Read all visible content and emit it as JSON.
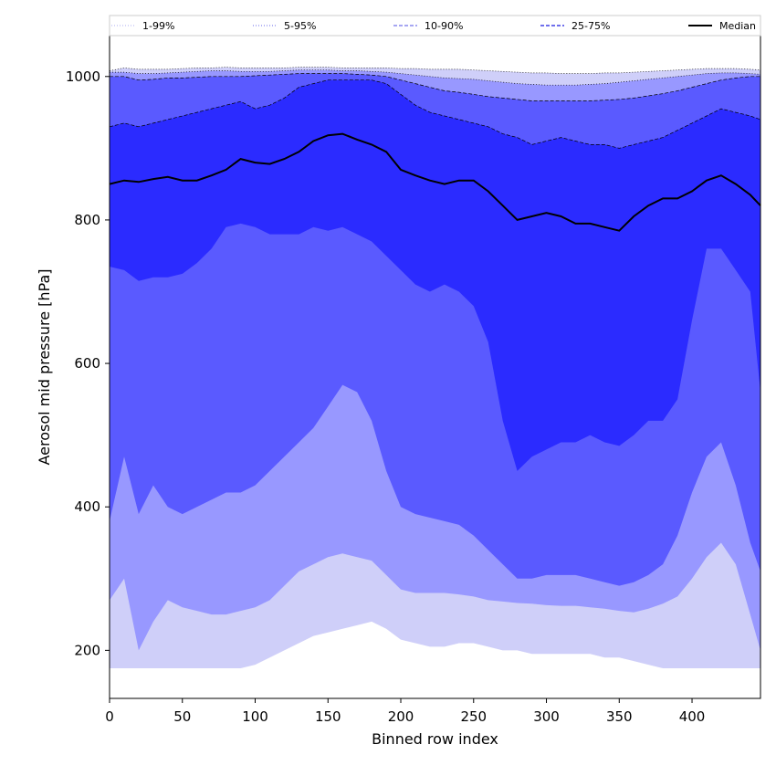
{
  "chart_data": {
    "type": "area",
    "title": "",
    "xlabel": "Binned row index",
    "ylabel": "Aerosol mid pressure [hPa]",
    "xlim": [
      0,
      447
    ],
    "ylim": [
      133,
      1057
    ],
    "x_ticks": [
      0,
      50,
      100,
      150,
      200,
      250,
      300,
      350,
      400
    ],
    "y_ticks": [
      200,
      400,
      600,
      800,
      1000
    ],
    "grid": false,
    "legend_position": "top",
    "legend": [
      {
        "label": "1-99%",
        "style": "dotted",
        "color": "#c8c8f5"
      },
      {
        "label": "5-95%",
        "style": "dotted",
        "color": "#9a9af0"
      },
      {
        "label": "10-90%",
        "style": "dashed",
        "color": "#8a8aee"
      },
      {
        "label": "25-75%",
        "style": "dashed",
        "color": "#4040e6"
      },
      {
        "label": "Median",
        "style": "solid",
        "color": "#000000"
      }
    ],
    "x": [
      0,
      10,
      20,
      30,
      40,
      50,
      60,
      70,
      80,
      90,
      100,
      110,
      120,
      130,
      140,
      150,
      160,
      170,
      180,
      190,
      200,
      210,
      220,
      230,
      240,
      250,
      260,
      270,
      280,
      290,
      300,
      310,
      320,
      330,
      340,
      350,
      360,
      370,
      380,
      390,
      400,
      410,
      420,
      430,
      440,
      447
    ],
    "series": [
      {
        "name": "1-99%",
        "color": "#cfcff9",
        "lower": [
          175,
          175,
          175,
          175,
          175,
          175,
          175,
          175,
          175,
          175,
          180,
          190,
          200,
          210,
          220,
          225,
          230,
          235,
          240,
          230,
          215,
          210,
          205,
          205,
          210,
          210,
          205,
          200,
          200,
          195,
          195,
          195,
          195,
          195,
          190,
          190,
          185,
          180,
          175,
          175,
          175,
          175,
          175,
          175,
          175,
          175
        ],
        "upper": [
          1008,
          1012,
          1010,
          1010,
          1010,
          1011,
          1012,
          1012,
          1013,
          1012,
          1012,
          1012,
          1012,
          1013,
          1013,
          1013,
          1012,
          1012,
          1012,
          1012,
          1011,
          1011,
          1010,
          1010,
          1010,
          1009,
          1008,
          1007,
          1006,
          1005,
          1005,
          1004,
          1004,
          1004,
          1005,
          1005,
          1006,
          1007,
          1008,
          1009,
          1010,
          1011,
          1011,
          1011,
          1010,
          1009
        ]
      },
      {
        "name": "5-95%",
        "color": "#9898ff",
        "lower": [
          270,
          300,
          200,
          240,
          270,
          260,
          255,
          250,
          250,
          255,
          260,
          270,
          290,
          310,
          320,
          330,
          335,
          330,
          325,
          305,
          285,
          280,
          280,
          280,
          278,
          275,
          270,
          268,
          266,
          265,
          263,
          262,
          262,
          260,
          258,
          255,
          253,
          258,
          265,
          275,
          300,
          330,
          350,
          320,
          250,
          200
        ],
        "upper": [
          1006,
          1006,
          1004,
          1004,
          1005,
          1006,
          1007,
          1008,
          1008,
          1007,
          1007,
          1007,
          1008,
          1009,
          1009,
          1009,
          1008,
          1008,
          1007,
          1006,
          1004,
          1002,
          1000,
          998,
          997,
          996,
          994,
          992,
          990,
          989,
          988,
          988,
          988,
          989,
          990,
          992,
          994,
          996,
          998,
          1000,
          1002,
          1004,
          1005,
          1005,
          1004,
          1003
        ]
      },
      {
        "name": "10-90%",
        "color": "#5a5aff",
        "lower": [
          380,
          470,
          390,
          430,
          400,
          390,
          400,
          410,
          420,
          420,
          430,
          450,
          470,
          490,
          510,
          540,
          570,
          560,
          520,
          450,
          400,
          390,
          385,
          380,
          375,
          360,
          340,
          320,
          300,
          300,
          305,
          305,
          305,
          300,
          295,
          290,
          295,
          305,
          320,
          360,
          420,
          470,
          490,
          430,
          350,
          310
        ],
        "upper": [
          1000,
          1000,
          995,
          996,
          998,
          998,
          999,
          1000,
          1000,
          1000,
          1001,
          1002,
          1003,
          1004,
          1004,
          1004,
          1004,
          1003,
          1002,
          1000,
          995,
          990,
          985,
          980,
          978,
          975,
          972,
          970,
          968,
          966,
          966,
          966,
          966,
          966,
          967,
          968,
          970,
          973,
          976,
          980,
          985,
          990,
          995,
          998,
          1000,
          1000
        ]
      },
      {
        "name": "25-75%",
        "color": "#2b2bff",
        "lower": [
          735,
          730,
          715,
          720,
          720,
          725,
          740,
          760,
          790,
          795,
          790,
          780,
          780,
          780,
          790,
          785,
          790,
          780,
          770,
          750,
          730,
          710,
          700,
          710,
          700,
          680,
          630,
          520,
          450,
          470,
          480,
          490,
          490,
          500,
          490,
          485,
          500,
          520,
          520,
          550,
          660,
          760,
          760,
          730,
          700,
          560
        ],
        "upper": [
          930,
          935,
          930,
          935,
          940,
          945,
          950,
          955,
          960,
          965,
          955,
          960,
          970,
          985,
          990,
          995,
          995,
          995,
          995,
          990,
          975,
          960,
          950,
          945,
          940,
          935,
          930,
          920,
          915,
          905,
          910,
          915,
          910,
          905,
          905,
          900,
          905,
          910,
          915,
          925,
          935,
          945,
          955,
          950,
          945,
          940
        ]
      },
      {
        "name": "Median",
        "color": "#000000",
        "values": [
          850,
          855,
          853,
          857,
          860,
          855,
          855,
          862,
          870,
          885,
          880,
          878,
          885,
          895,
          910,
          918,
          920,
          912,
          905,
          895,
          870,
          862,
          855,
          850,
          855,
          855,
          840,
          820,
          800,
          805,
          810,
          805,
          795,
          795,
          790,
          785,
          805,
          820,
          830,
          830,
          840,
          855,
          862,
          850,
          835,
          820
        ]
      }
    ]
  }
}
